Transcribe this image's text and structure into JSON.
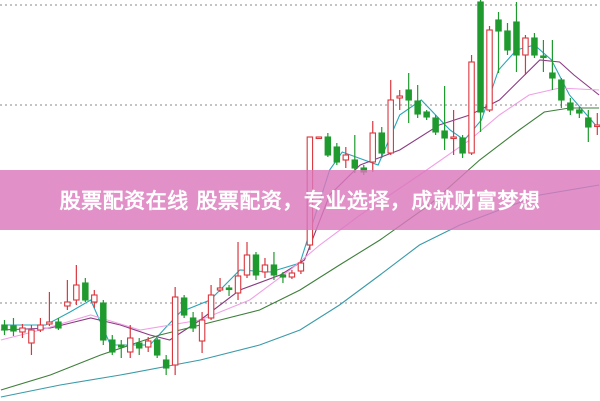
{
  "banner": {
    "text": "股票配资在线 股票配资，专业选择，成就财富梦想"
  },
  "chart_data": {
    "type": "candlestick",
    "title": "",
    "xlabel": "",
    "ylabel": "",
    "xlim": [
      -0.5,
      66.3
    ],
    "ylim": [
      0,
      401
    ],
    "grid": "dotted horizontal",
    "gridlines": [
      396,
      296,
      98
    ],
    "colors": {
      "up": "#d9363e",
      "down": "#1f9a2e",
      "grid": "#888888",
      "banner": "#da78bc"
    },
    "candles": [
      [
        76,
        81,
        66,
        71
      ],
      [
        75,
        83,
        65,
        70
      ],
      [
        69,
        77,
        63,
        73
      ],
      [
        58,
        76,
        46,
        71
      ],
      [
        71,
        83,
        69,
        76
      ],
      [
        77,
        109,
        75,
        79
      ],
      [
        79,
        83,
        71,
        73
      ],
      [
        95,
        121,
        91,
        99
      ],
      [
        101,
        136,
        96,
        116
      ],
      [
        118,
        123,
        99,
        101
      ],
      [
        99,
        111,
        93,
        106
      ],
      [
        98,
        101,
        56,
        61
      ],
      [
        61,
        66,
        46,
        49
      ],
      [
        56,
        61,
        43,
        54
      ],
      [
        49,
        76,
        43,
        63
      ],
      [
        58,
        63,
        46,
        53
      ],
      [
        54,
        64,
        49,
        60
      ],
      [
        61,
        63,
        43,
        46
      ],
      [
        41,
        46,
        26,
        33
      ],
      [
        36,
        114,
        26,
        104
      ],
      [
        103,
        106,
        83,
        86
      ],
      [
        83,
        89,
        69,
        73
      ],
      [
        60,
        89,
        48,
        81
      ],
      [
        83,
        116,
        81,
        106
      ],
      [
        111,
        123,
        109,
        113
      ],
      [
        113,
        116,
        105,
        112
      ],
      [
        108,
        159,
        101,
        125
      ],
      [
        126,
        159,
        123,
        146
      ],
      [
        146,
        149,
        121,
        126
      ],
      [
        129,
        143,
        123,
        136
      ],
      [
        136,
        149,
        121,
        126
      ],
      [
        126,
        129,
        118,
        124
      ],
      [
        124,
        131,
        122,
        128
      ],
      [
        130,
        141,
        127,
        138
      ],
      [
        156,
        264,
        151,
        264
      ],
      [
        263,
        264,
        262,
        264
      ],
      [
        264,
        268,
        244,
        246
      ],
      [
        254,
        258,
        236,
        239
      ],
      [
        241,
        254,
        233,
        246
      ],
      [
        241,
        266,
        228,
        233
      ],
      [
        233,
        236,
        226,
        229
      ],
      [
        239,
        280,
        229,
        268
      ],
      [
        268,
        274,
        243,
        248
      ],
      [
        248,
        321,
        246,
        301
      ],
      [
        303,
        311,
        291,
        305
      ],
      [
        311,
        328,
        278,
        301
      ],
      [
        300,
        316,
        283,
        287
      ],
      [
        289,
        291,
        281,
        284
      ],
      [
        283,
        286,
        266,
        269
      ],
      [
        270,
        315,
        251,
        263
      ],
      [
        263,
        291,
        246,
        264
      ],
      [
        263,
        266,
        243,
        248
      ],
      [
        248,
        346,
        246,
        339
      ],
      [
        399,
        401,
        269,
        289
      ],
      [
        291,
        375,
        289,
        371
      ],
      [
        381,
        389,
        328,
        370
      ],
      [
        370,
        378,
        346,
        351
      ],
      [
        379,
        399,
        329,
        346
      ],
      [
        346,
        366,
        326,
        363
      ],
      [
        363,
        368,
        343,
        346
      ],
      [
        345,
        361,
        329,
        344
      ],
      [
        328,
        361,
        311,
        323
      ],
      [
        321,
        323,
        293,
        301
      ],
      [
        298,
        303,
        286,
        291
      ],
      [
        291,
        294,
        283,
        288
      ],
      [
        283,
        291,
        259,
        274
      ],
      [
        276,
        288,
        266,
        276
      ]
    ],
    "lines": [
      {
        "color": "#2aa6b8",
        "points": [
          [
            0,
            76
          ],
          [
            4.6,
            76
          ],
          [
            7.3,
            89
          ],
          [
            9.6,
            101
          ],
          [
            11.8,
            56
          ],
          [
            16.2,
            56
          ],
          [
            17.9,
            73
          ],
          [
            19.6,
            89
          ],
          [
            22.9,
            101
          ],
          [
            26.2,
            131
          ],
          [
            29.6,
            129
          ],
          [
            32.9,
            138
          ],
          [
            34.6,
            186
          ],
          [
            36.2,
            231
          ],
          [
            37.6,
            249
          ],
          [
            41.6,
            236
          ],
          [
            44,
            286
          ],
          [
            46.4,
            301
          ],
          [
            49.6,
            271
          ],
          [
            51.2,
            261
          ],
          [
            53.1,
            281
          ],
          [
            55,
            331
          ],
          [
            57,
            351
          ],
          [
            59,
            356
          ],
          [
            60.9,
            341
          ],
          [
            62.9,
            306
          ],
          [
            65.8,
            276
          ]
        ]
      },
      {
        "color": "#8a3c82",
        "points": [
          [
            -0.4,
            71
          ],
          [
            5.1,
            73
          ],
          [
            9.6,
            83
          ],
          [
            12.9,
            76
          ],
          [
            16.2,
            66
          ],
          [
            18.4,
            61
          ],
          [
            21.8,
            81
          ],
          [
            26.2,
            111
          ],
          [
            30.7,
            126
          ],
          [
            33.4,
            141
          ],
          [
            36.2,
            206
          ],
          [
            39.6,
            236
          ],
          [
            44,
            251
          ],
          [
            48.4,
            276
          ],
          [
            51.8,
            286
          ],
          [
            55.1,
            301
          ],
          [
            59.6,
            341
          ],
          [
            61.8,
            339
          ],
          [
            63.4,
            326
          ],
          [
            66.2,
            306
          ]
        ]
      },
      {
        "color": "#f0a0e6",
        "points": [
          [
            -0.4,
            61
          ],
          [
            4,
            71
          ],
          [
            9.6,
            86
          ],
          [
            15.1,
            71
          ],
          [
            21.8,
            81
          ],
          [
            27.3,
            101
          ],
          [
            31.8,
            131
          ],
          [
            35.1,
            156
          ],
          [
            39.6,
            186
          ],
          [
            46.2,
            226
          ],
          [
            51.8,
            261
          ],
          [
            55.1,
            286
          ],
          [
            58.4,
            306
          ],
          [
            61.8,
            313
          ],
          [
            66.2,
            311
          ]
        ]
      },
      {
        "color": "#3e7f3a",
        "points": [
          [
            -0.4,
            11
          ],
          [
            5.1,
            26
          ],
          [
            10.7,
            46
          ],
          [
            17.3,
            66
          ],
          [
            21.8,
            76
          ],
          [
            28.4,
            91
          ],
          [
            32.9,
            111
          ],
          [
            37.3,
            136
          ],
          [
            41.8,
            161
          ],
          [
            47.3,
            196
          ],
          [
            52.9,
            241
          ],
          [
            57.3,
            271
          ],
          [
            60.1,
            289
          ],
          [
            62.9,
            293
          ],
          [
            66.2,
            293
          ]
        ]
      },
      {
        "color": "#3a9aa8",
        "points": [
          [
            -0.4,
            4
          ],
          [
            6.2,
            16
          ],
          [
            12.9,
            26
          ],
          [
            21.8,
            41
          ],
          [
            28.4,
            56
          ],
          [
            32.9,
            71
          ],
          [
            37.3,
            96
          ],
          [
            41.8,
            126
          ],
          [
            46.2,
            156
          ],
          [
            50.7,
            176
          ],
          [
            55.1,
            191
          ],
          [
            59.6,
            206
          ],
          [
            66.2,
            216
          ]
        ]
      }
    ]
  }
}
